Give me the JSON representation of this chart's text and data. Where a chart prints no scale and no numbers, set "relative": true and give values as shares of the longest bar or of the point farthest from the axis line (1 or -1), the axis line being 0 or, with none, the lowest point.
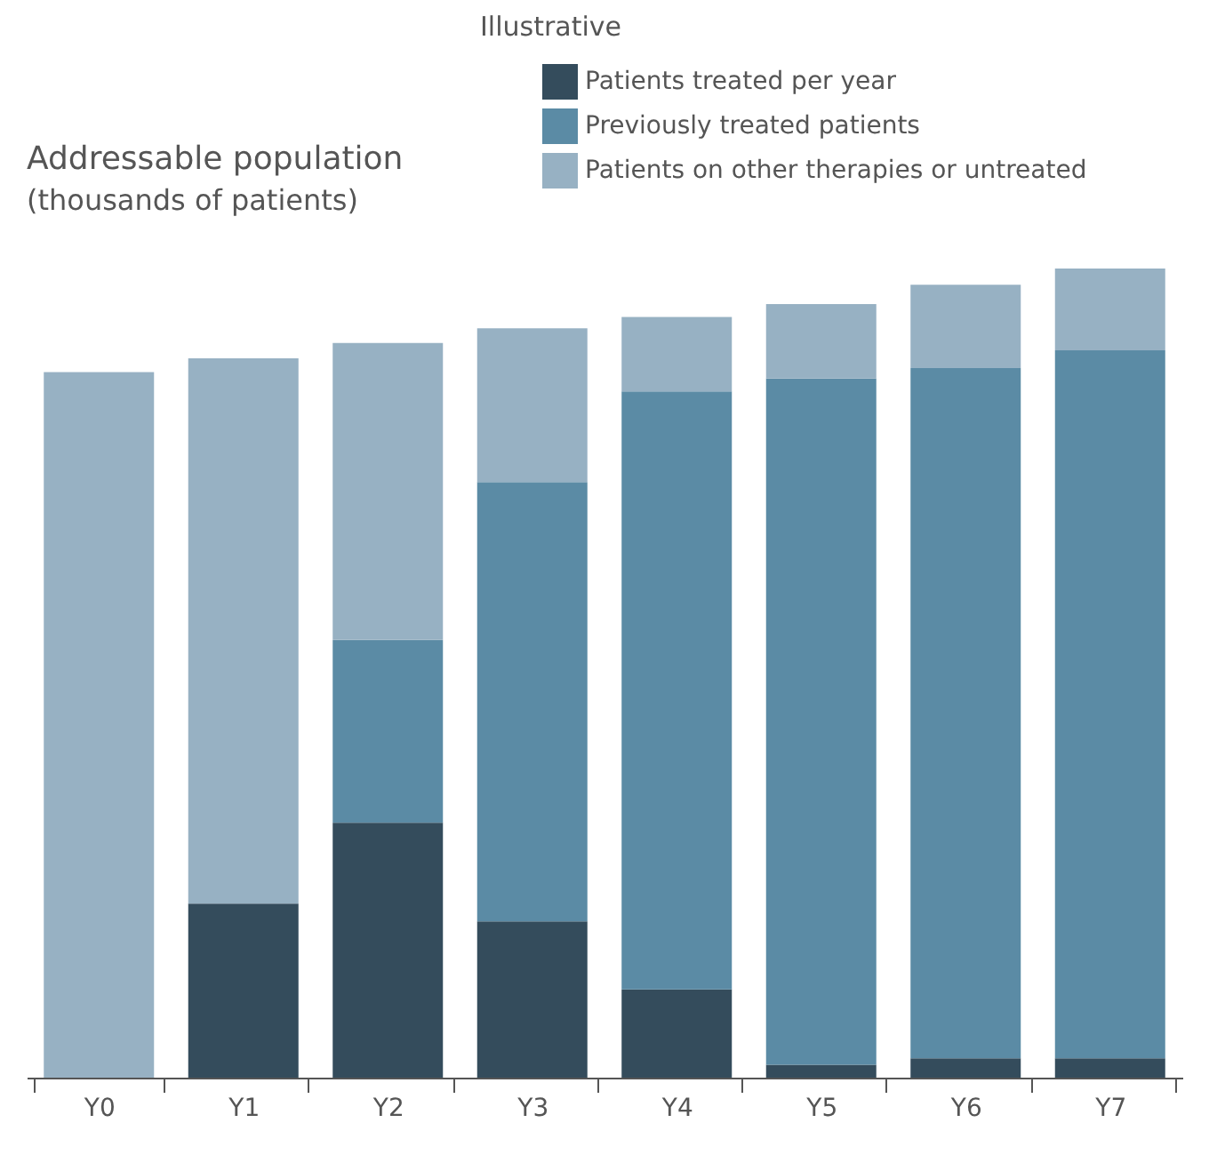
{
  "chart_data": {
    "type": "bar",
    "stacked": true,
    "relative": true,
    "title": "Addressable population",
    "subtitle": "(thousands of patients)",
    "annotations": [
      "Illustrative"
    ],
    "categories": [
      "Y0",
      "Y1",
      "Y2",
      "Y3",
      "Y4",
      "Y5",
      "Y6",
      "Y7"
    ],
    "series": [
      {
        "name": "Patients treated per year",
        "color": "#344c5c",
        "values": [
          0,
          0.215,
          0.315,
          0.193,
          0.109,
          0.016,
          0.024,
          0.024
        ]
      },
      {
        "name": "Previously treated patients",
        "color": "#5b8ba5",
        "values": [
          0,
          0,
          0.226,
          0.543,
          0.739,
          0.848,
          0.853,
          0.875
        ]
      },
      {
        "name": "Patients on other therapies or untreated",
        "color": "#97b1c3",
        "values": [
          0.872,
          0.674,
          0.367,
          0.19,
          0.092,
          0.092,
          0.103,
          0.101
        ]
      }
    ],
    "legend": "top right",
    "grid": false
  }
}
